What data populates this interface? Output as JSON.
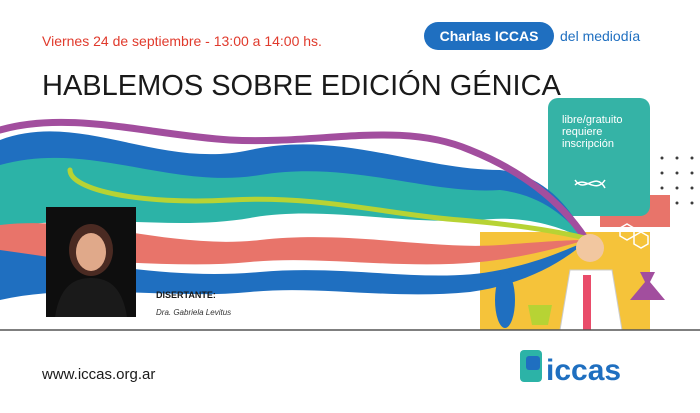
{
  "header": {
    "date": "Viernes 24 de septiembre - 13:00 a 14:00 hs.",
    "badge": "Charlas ICCAS",
    "badge_suffix": "del mediodía"
  },
  "title": "HABLEMOS SOBRE EDICIÓN GÉNICA",
  "note": {
    "lines": [
      "libre/gratuito",
      "requiere",
      "inscripción"
    ]
  },
  "speaker": {
    "label": "DISERTANTE:",
    "name": "Dra. Gabriela Levitus"
  },
  "footer": {
    "url": "www.iccas.org.ar",
    "logo": "iccas"
  }
}
